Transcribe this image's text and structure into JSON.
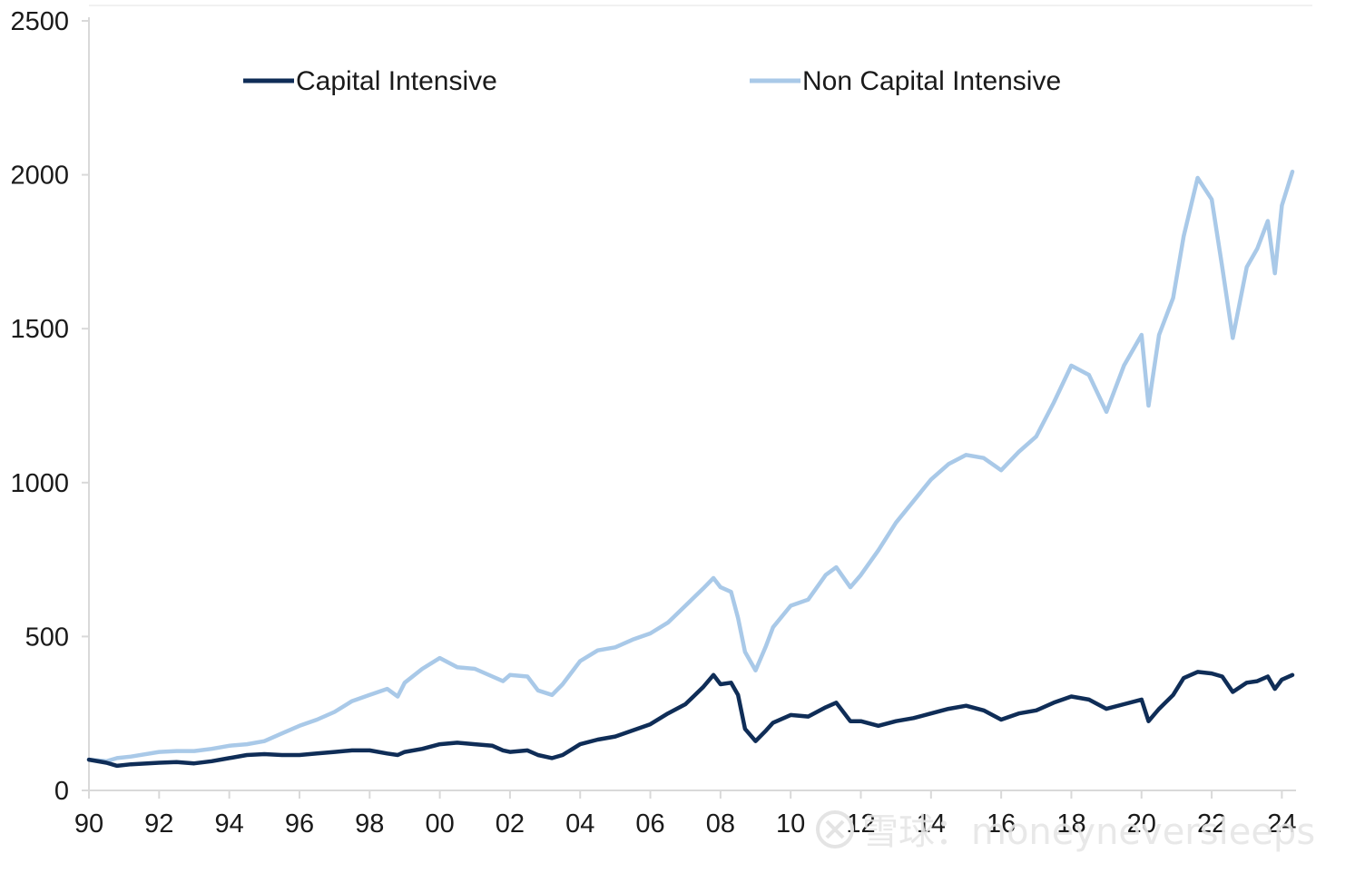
{
  "chart_data": {
    "type": "line",
    "title": "",
    "xlabel": "",
    "ylabel": "",
    "xlim": [
      1990,
      2024.3
    ],
    "ylim": [
      0,
      2500
    ],
    "y_ticks": [
      0,
      500,
      1000,
      1500,
      2000,
      2500
    ],
    "x_tick_values": [
      1990,
      1992,
      1994,
      1996,
      1998,
      2000,
      2002,
      2004,
      2006,
      2008,
      2010,
      2012,
      2014,
      2016,
      2018,
      2020,
      2022,
      2024
    ],
    "x_tick_labels": [
      "90",
      "92",
      "94",
      "96",
      "98",
      "00",
      "02",
      "04",
      "06",
      "08",
      "10",
      "12",
      "14",
      "16",
      "18",
      "20",
      "22",
      "24"
    ],
    "grid": false,
    "legend": {
      "placement": "top",
      "entries": [
        "Capital Intensive",
        "Non Capital Intensive"
      ]
    },
    "series": [
      {
        "name": "Capital Intensive",
        "color": "#0f2d57",
        "points": [
          [
            1990.0,
            100
          ],
          [
            1990.5,
            90
          ],
          [
            1990.8,
            80
          ],
          [
            1991.2,
            85
          ],
          [
            1992.0,
            90
          ],
          [
            1992.5,
            92
          ],
          [
            1993.0,
            88
          ],
          [
            1993.5,
            95
          ],
          [
            1994.0,
            105
          ],
          [
            1994.5,
            115
          ],
          [
            1995.0,
            118
          ],
          [
            1995.5,
            115
          ],
          [
            1996.0,
            115
          ],
          [
            1996.5,
            120
          ],
          [
            1997.0,
            125
          ],
          [
            1997.5,
            130
          ],
          [
            1998.0,
            130
          ],
          [
            1998.5,
            120
          ],
          [
            1998.8,
            115
          ],
          [
            1999.0,
            125
          ],
          [
            1999.5,
            135
          ],
          [
            2000.0,
            150
          ],
          [
            2000.5,
            155
          ],
          [
            2001.0,
            150
          ],
          [
            2001.5,
            145
          ],
          [
            2001.8,
            130
          ],
          [
            2002.0,
            125
          ],
          [
            2002.5,
            130
          ],
          [
            2002.8,
            115
          ],
          [
            2003.2,
            105
          ],
          [
            2003.5,
            115
          ],
          [
            2004.0,
            150
          ],
          [
            2004.5,
            165
          ],
          [
            2005.0,
            175
          ],
          [
            2005.5,
            195
          ],
          [
            2006.0,
            215
          ],
          [
            2006.5,
            250
          ],
          [
            2007.0,
            280
          ],
          [
            2007.5,
            335
          ],
          [
            2007.8,
            375
          ],
          [
            2008.0,
            345
          ],
          [
            2008.3,
            350
          ],
          [
            2008.5,
            310
          ],
          [
            2008.7,
            200
          ],
          [
            2009.0,
            160
          ],
          [
            2009.3,
            195
          ],
          [
            2009.5,
            220
          ],
          [
            2010.0,
            245
          ],
          [
            2010.5,
            240
          ],
          [
            2011.0,
            270
          ],
          [
            2011.3,
            285
          ],
          [
            2011.7,
            225
          ],
          [
            2012.0,
            225
          ],
          [
            2012.5,
            210
          ],
          [
            2013.0,
            225
          ],
          [
            2013.5,
            235
          ],
          [
            2014.0,
            250
          ],
          [
            2014.5,
            265
          ],
          [
            2015.0,
            275
          ],
          [
            2015.5,
            260
          ],
          [
            2016.0,
            230
          ],
          [
            2016.5,
            250
          ],
          [
            2017.0,
            260
          ],
          [
            2017.5,
            285
          ],
          [
            2018.0,
            305
          ],
          [
            2018.5,
            295
          ],
          [
            2019.0,
            265
          ],
          [
            2019.5,
            280
          ],
          [
            2020.0,
            295
          ],
          [
            2020.2,
            225
          ],
          [
            2020.5,
            265
          ],
          [
            2020.9,
            310
          ],
          [
            2021.2,
            365
          ],
          [
            2021.6,
            385
          ],
          [
            2022.0,
            380
          ],
          [
            2022.3,
            370
          ],
          [
            2022.6,
            320
          ],
          [
            2023.0,
            350
          ],
          [
            2023.3,
            355
          ],
          [
            2023.6,
            370
          ],
          [
            2023.8,
            330
          ],
          [
            2024.0,
            360
          ],
          [
            2024.3,
            375
          ]
        ]
      },
      {
        "name": "Non Capital Intensive",
        "color": "#a9c9e8",
        "points": [
          [
            1990.0,
            100
          ],
          [
            1990.5,
            95
          ],
          [
            1990.8,
            105
          ],
          [
            1991.2,
            110
          ],
          [
            1992.0,
            125
          ],
          [
            1992.5,
            128
          ],
          [
            1993.0,
            128
          ],
          [
            1993.5,
            135
          ],
          [
            1994.0,
            145
          ],
          [
            1994.5,
            150
          ],
          [
            1995.0,
            160
          ],
          [
            1995.5,
            185
          ],
          [
            1996.0,
            210
          ],
          [
            1996.5,
            230
          ],
          [
            1997.0,
            255
          ],
          [
            1997.5,
            290
          ],
          [
            1998.0,
            310
          ],
          [
            1998.5,
            330
          ],
          [
            1998.8,
            305
          ],
          [
            1999.0,
            350
          ],
          [
            1999.5,
            395
          ],
          [
            2000.0,
            430
          ],
          [
            2000.5,
            400
          ],
          [
            2001.0,
            395
          ],
          [
            2001.5,
            370
          ],
          [
            2001.8,
            355
          ],
          [
            2002.0,
            375
          ],
          [
            2002.5,
            370
          ],
          [
            2002.8,
            325
          ],
          [
            2003.2,
            310
          ],
          [
            2003.5,
            345
          ],
          [
            2004.0,
            420
          ],
          [
            2004.5,
            455
          ],
          [
            2005.0,
            465
          ],
          [
            2005.5,
            490
          ],
          [
            2006.0,
            510
          ],
          [
            2006.5,
            545
          ],
          [
            2007.0,
            600
          ],
          [
            2007.5,
            655
          ],
          [
            2007.8,
            690
          ],
          [
            2008.0,
            660
          ],
          [
            2008.3,
            645
          ],
          [
            2008.5,
            560
          ],
          [
            2008.7,
            450
          ],
          [
            2009.0,
            390
          ],
          [
            2009.3,
            470
          ],
          [
            2009.5,
            530
          ],
          [
            2010.0,
            600
          ],
          [
            2010.5,
            620
          ],
          [
            2011.0,
            700
          ],
          [
            2011.3,
            725
          ],
          [
            2011.7,
            660
          ],
          [
            2012.0,
            700
          ],
          [
            2012.5,
            780
          ],
          [
            2013.0,
            870
          ],
          [
            2013.5,
            940
          ],
          [
            2014.0,
            1010
          ],
          [
            2014.5,
            1060
          ],
          [
            2015.0,
            1090
          ],
          [
            2015.5,
            1080
          ],
          [
            2016.0,
            1040
          ],
          [
            2016.5,
            1100
          ],
          [
            2017.0,
            1150
          ],
          [
            2017.5,
            1260
          ],
          [
            2018.0,
            1380
          ],
          [
            2018.5,
            1350
          ],
          [
            2019.0,
            1230
          ],
          [
            2019.5,
            1380
          ],
          [
            2020.0,
            1480
          ],
          [
            2020.2,
            1250
          ],
          [
            2020.5,
            1480
          ],
          [
            2020.9,
            1600
          ],
          [
            2021.2,
            1800
          ],
          [
            2021.6,
            1990
          ],
          [
            2022.0,
            1920
          ],
          [
            2022.3,
            1700
          ],
          [
            2022.6,
            1470
          ],
          [
            2023.0,
            1700
          ],
          [
            2023.3,
            1760
          ],
          [
            2023.6,
            1850
          ],
          [
            2023.8,
            1680
          ],
          [
            2024.0,
            1900
          ],
          [
            2024.3,
            2010
          ]
        ]
      }
    ]
  },
  "watermark": {
    "text": "雪球：moneyneversleeps"
  }
}
